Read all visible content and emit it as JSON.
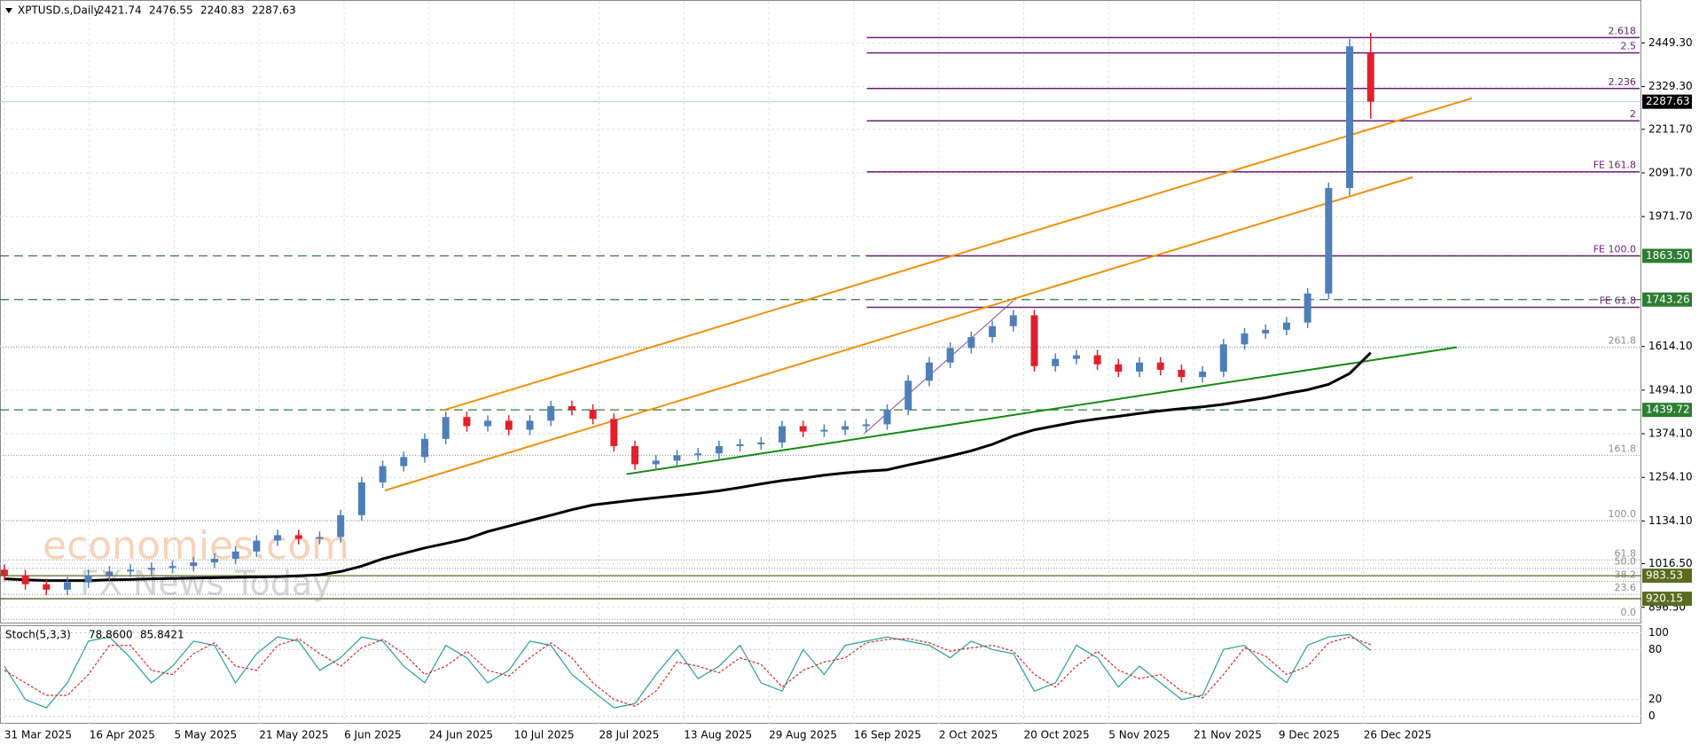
{
  "chart_data": {
    "type": "candlestick",
    "symbol": "XPTUSD.s,Daily",
    "colors": {
      "up": "#4f7fb8",
      "down": "#e0212b"
    },
    "open": [
      1000,
      985,
      960,
      945,
      965,
      985,
      995,
      1000,
      1005,
      1010,
      1020,
      1030,
      1050,
      1080,
      1095,
      1085,
      1090,
      1150,
      1240,
      1285,
      1310,
      1360,
      1420,
      1395,
      1410,
      1385,
      1410,
      1450,
      1440,
      1415,
      1340,
      1290,
      1300,
      1315,
      1320,
      1340,
      1345,
      1350,
      1395,
      1380,
      1385,
      1395,
      1400,
      1440,
      1520,
      1570,
      1610,
      1640,
      1670,
      1700,
      1560,
      1580,
      1590,
      1565,
      1545,
      1570,
      1550,
      1530,
      1545,
      1620,
      1650,
      1660,
      1680,
      1760,
      2050,
      2421.74
    ],
    "high": [
      1015,
      1000,
      975,
      980,
      1000,
      1010,
      1015,
      1020,
      1025,
      1035,
      1045,
      1065,
      1095,
      1110,
      1110,
      1105,
      1165,
      1255,
      1300,
      1325,
      1375,
      1435,
      1435,
      1425,
      1425,
      1425,
      1465,
      1465,
      1455,
      1430,
      1355,
      1315,
      1330,
      1335,
      1355,
      1360,
      1365,
      1410,
      1410,
      1400,
      1410,
      1415,
      1455,
      1535,
      1585,
      1625,
      1655,
      1685,
      1715,
      1715,
      1595,
      1605,
      1605,
      1580,
      1585,
      1585,
      1565,
      1560,
      1635,
      1665,
      1675,
      1695,
      1775,
      2065,
      2460,
      2476.55
    ],
    "low": [
      970,
      945,
      930,
      930,
      950,
      970,
      980,
      985,
      990,
      995,
      1005,
      1015,
      1035,
      1065,
      1070,
      1070,
      1075,
      1135,
      1225,
      1270,
      1295,
      1345,
      1380,
      1380,
      1370,
      1370,
      1395,
      1425,
      1400,
      1325,
      1275,
      1275,
      1285,
      1300,
      1305,
      1325,
      1330,
      1335,
      1365,
      1365,
      1370,
      1380,
      1385,
      1425,
      1505,
      1555,
      1595,
      1625,
      1655,
      1545,
      1545,
      1565,
      1550,
      1530,
      1530,
      1535,
      1515,
      1515,
      1530,
      1605,
      1635,
      1645,
      1665,
      1745,
      2030,
      2240.83
    ],
    "close": [
      985,
      960,
      945,
      965,
      985,
      995,
      1000,
      1005,
      1010,
      1020,
      1030,
      1050,
      1080,
      1095,
      1085,
      1090,
      1150,
      1240,
      1285,
      1310,
      1360,
      1420,
      1395,
      1410,
      1385,
      1410,
      1450,
      1440,
      1415,
      1340,
      1290,
      1300,
      1315,
      1320,
      1340,
      1345,
      1350,
      1395,
      1380,
      1385,
      1395,
      1400,
      1440,
      1520,
      1570,
      1610,
      1640,
      1670,
      1700,
      1560,
      1580,
      1590,
      1565,
      1545,
      1570,
      1550,
      1530,
      1545,
      1620,
      1650,
      1660,
      1680,
      1760,
      2050,
      2440,
      2287.63
    ],
    "ylim": [
      852,
      2565
    ],
    "yticks": [
      {
        "value": 2449.3,
        "label": "2449.30"
      },
      {
        "value": 2329.3,
        "label": "2329.30"
      },
      {
        "value": 2211.7,
        "label": "2211.70"
      },
      {
        "value": 2091.7,
        "label": "2091.70"
      },
      {
        "value": 1971.7,
        "label": "1971.70"
      },
      {
        "value": 1614.1,
        "label": "1614.10"
      },
      {
        "value": 1494.1,
        "label": "1494.10"
      },
      {
        "value": 1374.1,
        "label": "1374.10"
      },
      {
        "value": 1254.1,
        "label": "1254.10"
      },
      {
        "value": 1134.1,
        "label": "1134.10"
      },
      {
        "value": 1016.5,
        "label": "1016.50"
      },
      {
        "value": 896.5,
        "label": "896.50"
      }
    ],
    "dates": [
      "31 Mar 2025",
      "16 Apr 2025",
      "5 May 2025",
      "21 May 2025",
      "6 Jun 2025",
      "24 Jun 2025",
      "10 Jul 2025",
      "28 Jul 2025",
      "13 Aug 2025",
      "29 Aug 2025",
      "16 Sep 2025",
      "2 Oct 2025",
      "20 Oct 2025",
      "5 Nov 2025",
      "21 Nov 2025",
      "9 Dec 2025",
      "26 Dec 2025"
    ],
    "ma": {
      "color": "#000000",
      "values": [
        975,
        972,
        970,
        970,
        970,
        972,
        973,
        975,
        976,
        977,
        978,
        979,
        980,
        981,
        983,
        986,
        995,
        1010,
        1030,
        1045,
        1060,
        1072,
        1085,
        1105,
        1120,
        1135,
        1150,
        1165,
        1178,
        1185,
        1192,
        1198,
        1204,
        1210,
        1217,
        1226,
        1236,
        1245,
        1252,
        1260,
        1266,
        1271,
        1275,
        1288,
        1300,
        1313,
        1327,
        1345,
        1368,
        1385,
        1396,
        1407,
        1415,
        1422,
        1430,
        1437,
        1443,
        1448,
        1455,
        1464,
        1473,
        1485,
        1495,
        1510,
        1540,
        1597
      ]
    },
    "trendlines": [
      {
        "color": "#f0900c",
        "from": [
          20.9,
          1439
        ],
        "to": [
          69.8,
          2297
        ]
      },
      {
        "color": "#f0900c",
        "from": [
          18.1,
          1218
        ],
        "to": [
          67.0,
          2080
        ]
      },
      {
        "color": "#138a13",
        "from": [
          29.6,
          1263
        ],
        "to": [
          69.1,
          1612
        ]
      },
      {
        "color": "#8a4a9a",
        "from": [
          40.9,
          1374
        ],
        "to": [
          48.0,
          1740
        ]
      }
    ],
    "fib_extension": {
      "color": "#6b1f78",
      "levels": [
        {
          "label": "2.618",
          "value": 2464
        },
        {
          "label": "2.5",
          "value": 2422
        },
        {
          "label": "2.236",
          "value": 2324
        },
        {
          "label": "2",
          "value": 2235
        },
        {
          "label": "FE 161.8",
          "value": 2094.7
        },
        {
          "label": "FE 100.0",
          "value": 1863.5
        },
        {
          "label": "FE 61.8",
          "value": 1722
        }
      ]
    },
    "retracement": {
      "color": "#8c8c8c",
      "levels": [
        {
          "label": "261.8",
          "value": 1612
        },
        {
          "label": "161.8",
          "value": 1314
        },
        {
          "label": "100.0",
          "value": 1135
        },
        {
          "label": "61.8",
          "value": 1027
        },
        {
          "label": "50.0",
          "value": 1004
        },
        {
          "label": "38.2",
          "value": 968
        },
        {
          "label": "23.6",
          "value": 932
        },
        {
          "label": "0.0",
          "value": 864
        }
      ]
    },
    "hlines": [
      {
        "value": 1863.5,
        "label": "1863.50",
        "color": "#2e7d32",
        "style": "dashed"
      },
      {
        "value": 1743.26,
        "label": "1743.26",
        "color": "#2e7d32",
        "style": "dashed"
      },
      {
        "value": 1439.72,
        "label": "1439.72",
        "color": "#2e7d32",
        "style": "dashed"
      },
      {
        "value": 983.53,
        "label": "983.53",
        "color": "#5b6b1e",
        "style": "solid"
      },
      {
        "value": 920.15,
        "label": "920.15",
        "color": "#5b6b1e",
        "style": "solid"
      }
    ],
    "watermarks": [
      "economies.com",
      "FX News Today"
    ],
    "stochastic": {
      "name": "Stoch(5,3,3)",
      "value_labels": [
        "78.8600",
        "85.8421"
      ],
      "ylim": [
        -9,
        108
      ],
      "yticks": [
        100,
        80,
        20,
        0
      ],
      "k": {
        "color": "#2a9d9d",
        "values": [
          60,
          20,
          10,
          40,
          90,
          95,
          70,
          40,
          60,
          90,
          85,
          40,
          75,
          95,
          90,
          55,
          70,
          95,
          90,
          60,
          40,
          85,
          70,
          40,
          55,
          90,
          85,
          50,
          30,
          10,
          15,
          50,
          80,
          45,
          60,
          85,
          40,
          30,
          80,
          50,
          85,
          90,
          95,
          90,
          85,
          70,
          90,
          80,
          75,
          30,
          40,
          85,
          70,
          35,
          60,
          40,
          20,
          25,
          80,
          85,
          60,
          40,
          85,
          95,
          98,
          78.86
        ]
      },
      "d": {
        "color": "#d42a2a",
        "values": [
          55,
          40,
          25,
          25,
          50,
          85,
          85,
          55,
          50,
          75,
          88,
          60,
          55,
          85,
          93,
          75,
          60,
          82,
          92,
          75,
          50,
          60,
          78,
          55,
          48,
          70,
          88,
          70,
          40,
          20,
          12,
          30,
          65,
          60,
          52,
          70,
          62,
          35,
          55,
          65,
          70,
          88,
          92,
          93,
          88,
          78,
          82,
          85,
          78,
          50,
          35,
          60,
          78,
          55,
          45,
          50,
          30,
          22,
          50,
          82,
          72,
          50,
          60,
          88,
          95,
          85.8421
        ]
      }
    }
  }
}
